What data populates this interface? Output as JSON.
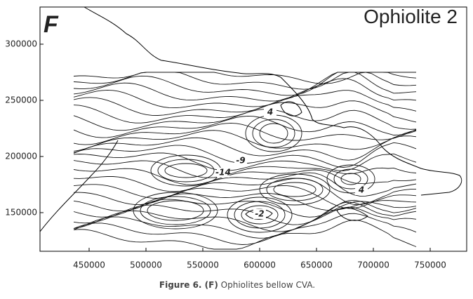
{
  "map": {
    "panel_letter": "F",
    "title": "Ophiolite 2",
    "xlim": [
      406800,
      782100
    ],
    "ylim": [
      115600,
      333100
    ],
    "xticks": [
      450000,
      500000,
      550000,
      600000,
      650000,
      700000,
      750000
    ],
    "yticks": [
      150000,
      200000,
      250000,
      300000
    ],
    "contour_labels": [
      "4",
      "-9",
      "-14",
      "4",
      "-2"
    ]
  },
  "caption": {
    "label": "Figure 6. (F)",
    "text": "Ophiolites bellow CVA."
  }
}
